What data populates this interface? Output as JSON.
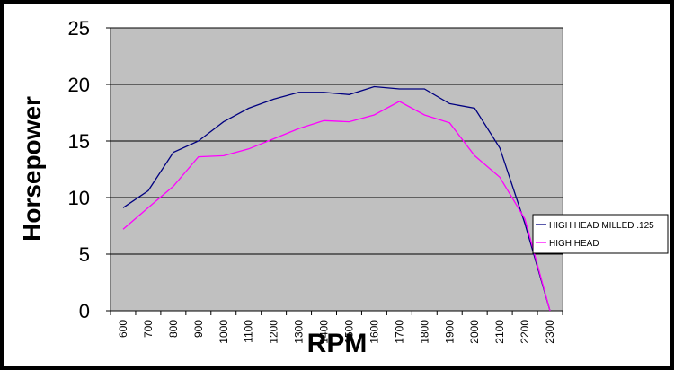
{
  "chart_data": {
    "type": "line",
    "xlabel": "RPM",
    "ylabel": "Horsepower",
    "ylim": [
      0,
      25
    ],
    "yticks": [
      0,
      5,
      10,
      15,
      20,
      25
    ],
    "categories": [
      "600",
      "700",
      "800",
      "900",
      "1000",
      "1100",
      "1200",
      "1300",
      "1400",
      "1500",
      "1600",
      "1700",
      "1800",
      "1900",
      "2000",
      "2100",
      "2200",
      "2300"
    ],
    "series": [
      {
        "name": "HIGH HEAD MILLED .125",
        "color": "#000080",
        "values": [
          9.1,
          10.6,
          14.0,
          15.0,
          16.7,
          17.9,
          18.7,
          19.3,
          19.3,
          19.1,
          19.8,
          19.6,
          19.6,
          18.3,
          17.9,
          14.4,
          7.7,
          0.0
        ]
      },
      {
        "name": "HIGH HEAD",
        "color": "#FF00FF",
        "values": [
          7.2,
          9.1,
          11.0,
          13.6,
          13.7,
          14.3,
          15.2,
          16.1,
          16.8,
          16.7,
          17.3,
          18.5,
          17.3,
          16.6,
          13.7,
          11.8,
          8.1,
          0.0
        ]
      }
    ],
    "grid": true,
    "plot_background": "#C0C0C0",
    "legend_position": "right"
  }
}
